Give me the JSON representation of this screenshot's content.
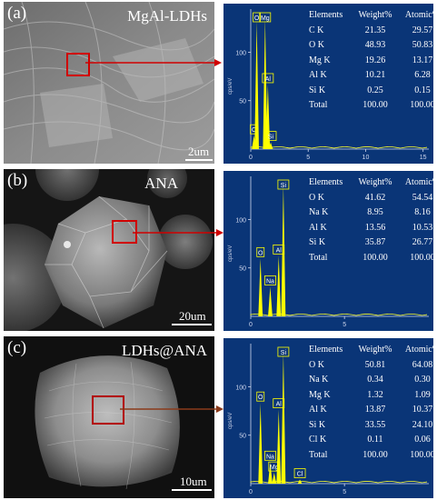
{
  "panels": [
    {
      "letter": "(a)",
      "title": "MgAl-LDHs",
      "scale": "2um",
      "eds": {
        "y_axis_label": "cps/eV",
        "y_ticks": [
          "100",
          "50"
        ],
        "x_ticks": [
          "0",
          "5",
          "10",
          "15"
        ],
        "peaks": [
          {
            "label": "C",
            "x": 0.28,
            "h": 0.1
          },
          {
            "label": "O",
            "x": 0.52,
            "h": 0.95
          },
          {
            "label": "Mg",
            "x": 1.25,
            "h": 0.97
          },
          {
            "label": "Al",
            "x": 1.49,
            "h": 0.48
          },
          {
            "label": "Si",
            "x": 1.74,
            "h": 0.05
          }
        ],
        "table": {
          "headers": [
            "Elements",
            "Weight%",
            "Atomic%"
          ],
          "rows": [
            [
              "C K",
              "21.35",
              "29.57"
            ],
            [
              "O K",
              "48.93",
              "50.83"
            ],
            [
              "Mg K",
              "19.26",
              "13.17"
            ],
            [
              "Al K",
              "10.21",
              "6.28"
            ],
            [
              "Si K",
              "0.25",
              "0.15"
            ],
            [
              "Total",
              "100.00",
              "100.00"
            ]
          ]
        }
      }
    },
    {
      "letter": "(b)",
      "title": "ANA",
      "scale": "20um",
      "eds": {
        "y_axis_label": "cps/eV",
        "y_ticks": [
          "100",
          "50"
        ],
        "x_ticks": [
          "0",
          "5"
        ],
        "peaks": [
          {
            "label": "O",
            "x": 0.52,
            "h": 0.43
          },
          {
            "label": "Na",
            "x": 1.04,
            "h": 0.22
          },
          {
            "label": "Al",
            "x": 1.49,
            "h": 0.45
          },
          {
            "label": "Si",
            "x": 1.74,
            "h": 0.98
          }
        ],
        "table": {
          "headers": [
            "Elements",
            "Weight%",
            "Atomic%"
          ],
          "rows": [
            [
              "O K",
              "41.62",
              "54.54"
            ],
            [
              "Na K",
              "8.95",
              "8.16"
            ],
            [
              "Al K",
              "13.56",
              "10.53"
            ],
            [
              "Si K",
              "35.87",
              "26.77"
            ],
            [
              "Total",
              "100.00",
              "100.00"
            ]
          ]
        }
      }
    },
    {
      "letter": "(c)",
      "title": "LDHs@ANA",
      "scale": "10um",
      "eds": {
        "y_axis_label": "cps/eV",
        "y_ticks": [
          "100",
          "50"
        ],
        "x_ticks": [
          "0",
          "5"
        ],
        "peaks": [
          {
            "label": "O",
            "x": 0.52,
            "h": 0.6
          },
          {
            "label": "Na",
            "x": 1.04,
            "h": 0.16
          },
          {
            "label": "Mg",
            "x": 1.25,
            "h": 0.08
          },
          {
            "label": "Al",
            "x": 1.49,
            "h": 0.55
          },
          {
            "label": "Si",
            "x": 1.74,
            "h": 0.98
          },
          {
            "label": "Cl",
            "x": 2.62,
            "h": 0.03
          }
        ],
        "table": {
          "headers": [
            "Elements",
            "Weight%",
            "Atomic%"
          ],
          "rows": [
            [
              "O K",
              "50.81",
              "64.08"
            ],
            [
              "Na K",
              "0.34",
              "0.30"
            ],
            [
              "Mg K",
              "1.32",
              "1.09"
            ],
            [
              "Al K",
              "13.87",
              "10.37"
            ],
            [
              "Si K",
              "33.55",
              "24.10"
            ],
            [
              "Cl K",
              "0.11",
              "0.06"
            ],
            [
              "Total",
              "100.00",
              "100.00"
            ]
          ]
        }
      }
    }
  ]
}
